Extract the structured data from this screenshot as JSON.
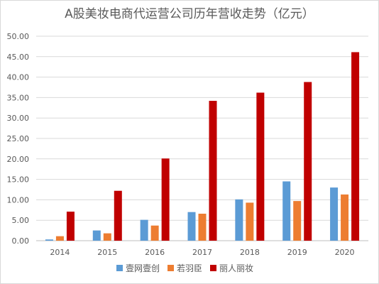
{
  "chart_data": {
    "type": "bar",
    "title": "A股美妆电商代运营公司历年营收走势（亿元）",
    "categories": [
      "2014",
      "2015",
      "2016",
      "2017",
      "2018",
      "2019",
      "2020"
    ],
    "series": [
      {
        "name": "壹网壹创",
        "color": "#5b9bd5",
        "values": [
          0.3,
          2.5,
          5.1,
          7.0,
          10.1,
          14.5,
          13.0
        ]
      },
      {
        "name": "若羽臣",
        "color": "#ed7d31",
        "values": [
          1.1,
          1.8,
          3.7,
          6.6,
          9.3,
          9.7,
          11.3
        ]
      },
      {
        "name": "丽人丽妆",
        "color": "#c00000",
        "values": [
          7.1,
          12.2,
          20.1,
          34.2,
          36.2,
          38.8,
          46.1
        ]
      }
    ],
    "ylim": [
      0,
      50
    ],
    "yticks": [
      "0.00",
      "5.00",
      "10.00",
      "15.00",
      "20.00",
      "25.00",
      "30.00",
      "35.00",
      "40.00",
      "45.00",
      "50.00"
    ],
    "grid": true,
    "legend_position": "bottom"
  }
}
